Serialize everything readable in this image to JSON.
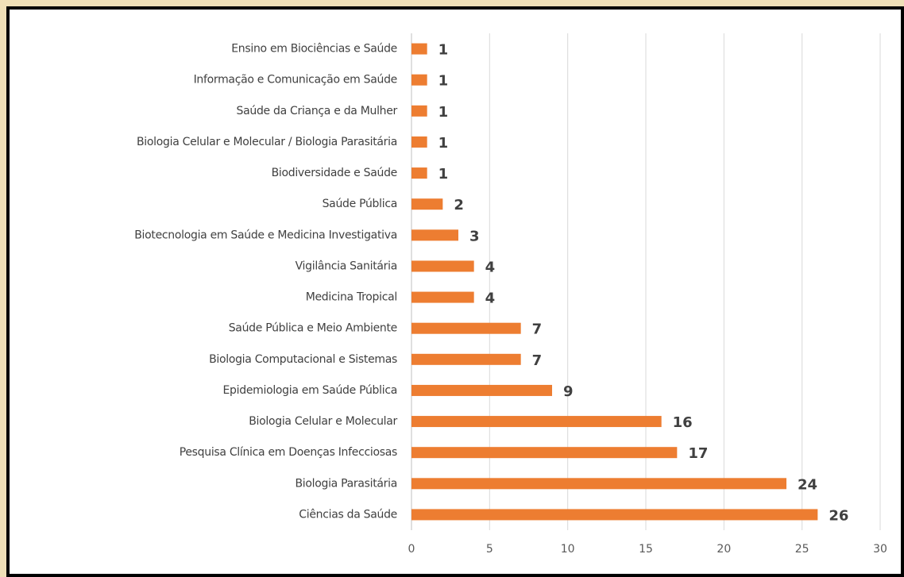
{
  "chart_data": {
    "type": "bar",
    "orientation": "horizontal",
    "categories": [
      "Ensino em Biociências e Saúde",
      "Informação e Comunicação em Saúde",
      "Saúde da Criança e da Mulher",
      "Biologia Celular e Molecular / Biologia Parasitária",
      "Biodiversidade e Saúde",
      "Saúde Pública",
      "Biotecnologia em Saúde e Medicina Investigativa",
      "Vigilância Sanitária",
      "Medicina Tropical",
      "Saúde Pública e Meio Ambiente",
      "Biologia Computacional e Sistemas",
      "Epidemiologia em Saúde Pública",
      "Biologia Celular e Molecular",
      "Pesquisa Clínica em Doenças Infecciosas",
      "Biologia Parasitária",
      "Ciências da Saúde"
    ],
    "values": [
      1,
      1,
      1,
      1,
      1,
      2,
      3,
      4,
      4,
      7,
      7,
      9,
      16,
      17,
      24,
      26
    ],
    "color": "#ed7d31",
    "xlim": [
      0,
      30
    ],
    "xticks": [
      0,
      5,
      10,
      15,
      20,
      25,
      30
    ],
    "grid": true
  }
}
